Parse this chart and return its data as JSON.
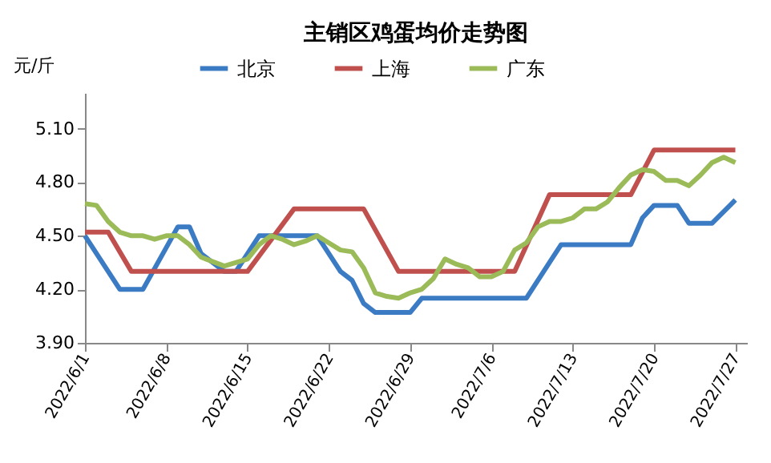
{
  "chart_data": {
    "type": "line",
    "title": "主销区鸡蛋均价走势图",
    "ylabel": "元/斤",
    "legend": "top",
    "grid": false,
    "xlim": [
      "2022-06-01",
      "2022-07-28"
    ],
    "xticks": [
      {
        "value": "2022-06-01",
        "label": "2022/6/1"
      },
      {
        "value": "2022-06-08",
        "label": "2022/6/8"
      },
      {
        "value": "2022-06-15",
        "label": "2022/6/15"
      },
      {
        "value": "2022-06-22",
        "label": "2022/6/22"
      },
      {
        "value": "2022-06-29",
        "label": "2022/6/29"
      },
      {
        "value": "2022-07-06",
        "label": "2022/7/6"
      },
      {
        "value": "2022-07-13",
        "label": "2022/7/13"
      },
      {
        "value": "2022-07-20",
        "label": "2022/7/20"
      },
      {
        "value": "2022-07-27",
        "label": "2022/7/27"
      }
    ],
    "ylim": [
      3.9,
      5.3
    ],
    "yticks": [
      {
        "value": 3.9,
        "label": "3.90"
      },
      {
        "value": 4.2,
        "label": "4.20"
      },
      {
        "value": 4.5,
        "label": "4.50"
      },
      {
        "value": 4.8,
        "label": "4.80"
      },
      {
        "value": 5.1,
        "label": "5.10"
      }
    ],
    "series": [
      {
        "name": "北京",
        "color": "#3b7bc4",
        "x": [
          "2022-06-01",
          "2022-06-04",
          "2022-06-06",
          "2022-06-09",
          "2022-06-10",
          "2022-06-11",
          "2022-06-13",
          "2022-06-14",
          "2022-06-16",
          "2022-06-21",
          "2022-06-23",
          "2022-06-24",
          "2022-06-25",
          "2022-06-26",
          "2022-06-29",
          "2022-06-30",
          "2022-07-09",
          "2022-07-11",
          "2022-07-12",
          "2022-07-18",
          "2022-07-19",
          "2022-07-20",
          "2022-07-22",
          "2022-07-23",
          "2022-07-25",
          "2022-07-27"
        ],
        "values": [
          4.5,
          4.2,
          4.2,
          4.55,
          4.55,
          4.4,
          4.3,
          4.3,
          4.5,
          4.5,
          4.3,
          4.25,
          4.12,
          4.07,
          4.07,
          4.15,
          4.15,
          4.35,
          4.45,
          4.45,
          4.6,
          4.67,
          4.67,
          4.57,
          4.57,
          4.7
        ]
      },
      {
        "name": "上海",
        "color": "#c0504d",
        "x": [
          "2022-06-01",
          "2022-06-03",
          "2022-06-05",
          "2022-06-15",
          "2022-06-19",
          "2022-06-25",
          "2022-06-28",
          "2022-07-08",
          "2022-07-11",
          "2022-07-18",
          "2022-07-20",
          "2022-07-27"
        ],
        "values": [
          4.52,
          4.52,
          4.3,
          4.3,
          4.65,
          4.65,
          4.3,
          4.3,
          4.73,
          4.73,
          4.98,
          4.98
        ]
      },
      {
        "name": "广东",
        "color": "#9bbb59",
        "x": [
          "2022-06-01",
          "2022-06-02",
          "2022-06-03",
          "2022-06-04",
          "2022-06-05",
          "2022-06-06",
          "2022-06-07",
          "2022-06-08",
          "2022-06-09",
          "2022-06-10",
          "2022-06-11",
          "2022-06-13",
          "2022-06-15",
          "2022-06-16",
          "2022-06-17",
          "2022-06-18",
          "2022-06-19",
          "2022-06-20",
          "2022-06-21",
          "2022-06-22",
          "2022-06-23",
          "2022-06-24",
          "2022-06-25",
          "2022-06-26",
          "2022-06-27",
          "2022-06-28",
          "2022-06-29",
          "2022-06-30",
          "2022-07-01",
          "2022-07-02",
          "2022-07-03",
          "2022-07-04",
          "2022-07-05",
          "2022-07-06",
          "2022-07-07",
          "2022-07-08",
          "2022-07-09",
          "2022-07-10",
          "2022-07-11",
          "2022-07-12",
          "2022-07-13",
          "2022-07-14",
          "2022-07-15",
          "2022-07-16",
          "2022-07-17",
          "2022-07-18",
          "2022-07-19",
          "2022-07-20",
          "2022-07-21",
          "2022-07-22",
          "2022-07-23",
          "2022-07-24",
          "2022-07-25",
          "2022-07-26",
          "2022-07-27"
        ],
        "values": [
          4.68,
          4.67,
          4.58,
          4.52,
          4.5,
          4.5,
          4.48,
          4.5,
          4.5,
          4.45,
          4.38,
          4.33,
          4.37,
          4.45,
          4.5,
          4.48,
          4.45,
          4.47,
          4.5,
          4.46,
          4.42,
          4.41,
          4.32,
          4.18,
          4.16,
          4.15,
          4.18,
          4.2,
          4.26,
          4.37,
          4.34,
          4.32,
          4.27,
          4.27,
          4.3,
          4.42,
          4.46,
          4.55,
          4.58,
          4.58,
          4.6,
          4.65,
          4.65,
          4.69,
          4.77,
          4.84,
          4.87,
          4.86,
          4.81,
          4.81,
          4.78,
          4.84,
          4.91,
          4.94,
          4.91
        ]
      }
    ]
  }
}
